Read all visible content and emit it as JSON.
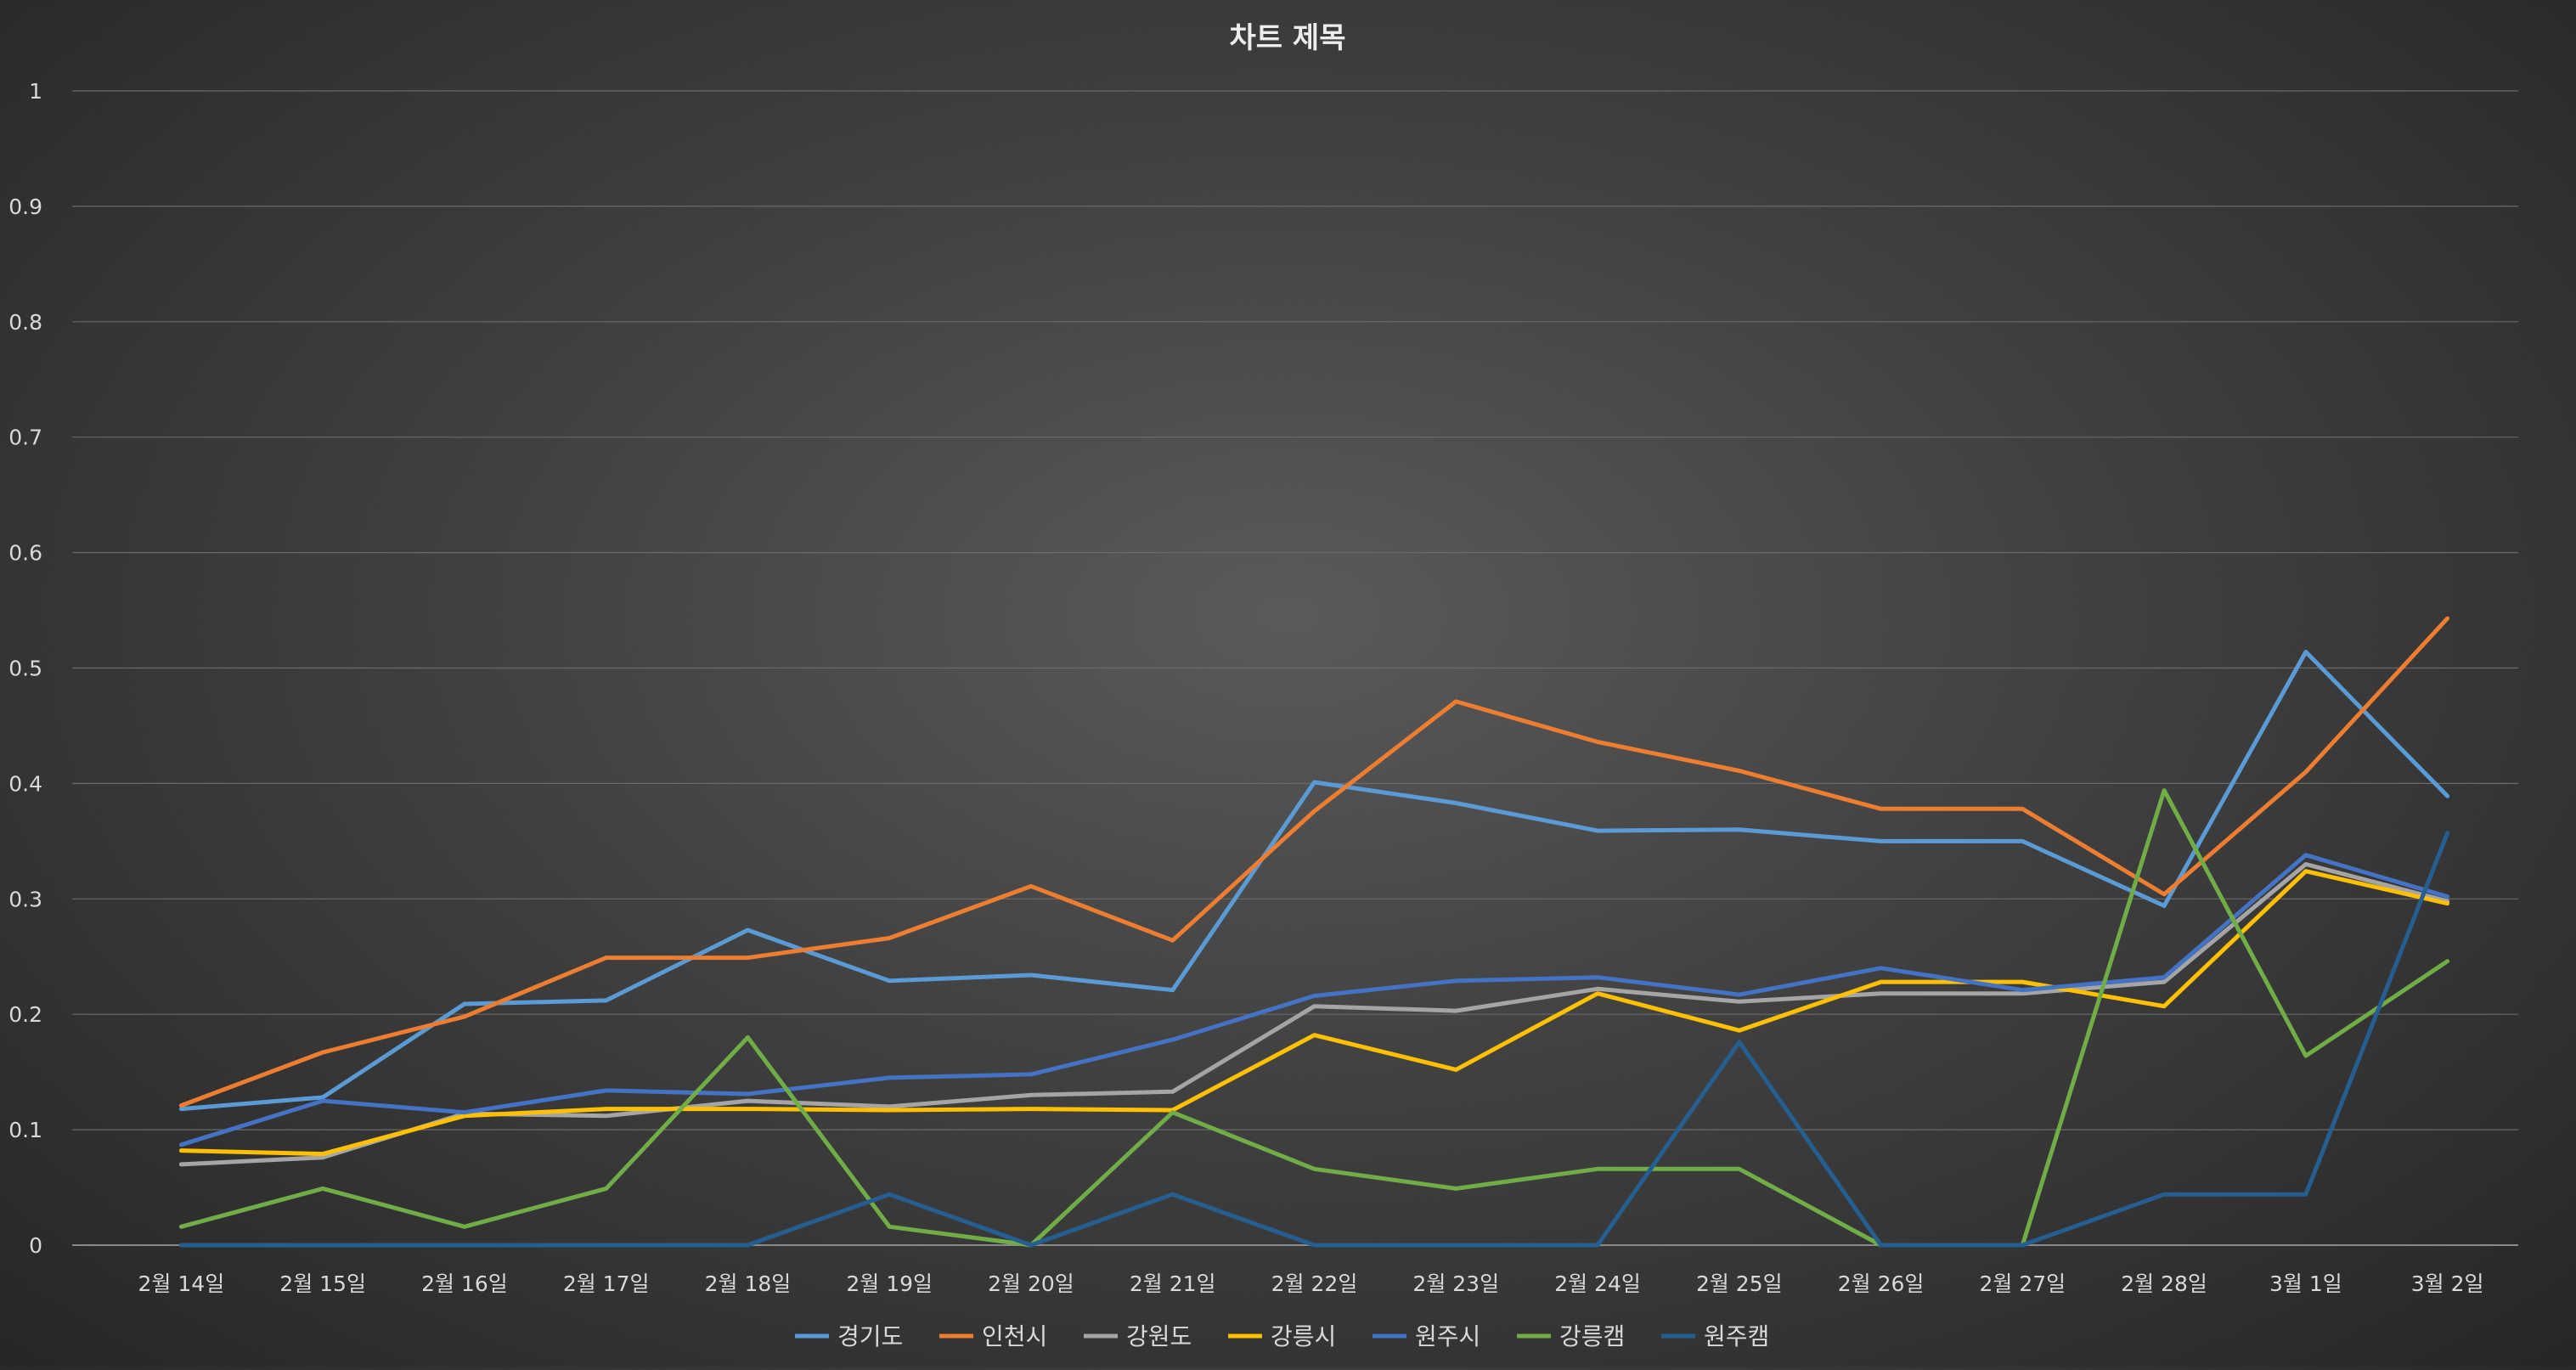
{
  "chart_data": {
    "type": "line",
    "title": "차트 제목",
    "xlabel": "",
    "ylabel": "",
    "ylim": [
      0,
      1
    ],
    "yticks": [
      "0",
      "0.1",
      "0.2",
      "0.3",
      "0.4",
      "0.5",
      "0.6",
      "0.7",
      "0.8",
      "0.9",
      "1"
    ],
    "categories": [
      "2월 14일",
      "2월 15일",
      "2월 16일",
      "2월 17일",
      "2월 18일",
      "2월 19일",
      "2월 20일",
      "2월 21일",
      "2월 22일",
      "2월 23일",
      "2월 24일",
      "2월 25일",
      "2월 26일",
      "2월 27일",
      "2월 28일",
      "3월 1일",
      "3월 2일"
    ],
    "grid": true,
    "legend_position": "bottom",
    "series": [
      {
        "name": "경기도",
        "color": "#5b9bd5",
        "values": [
          0.118,
          0.128,
          0.209,
          0.212,
          0.273,
          0.229,
          0.234,
          0.221,
          0.401,
          0.383,
          0.359,
          0.36,
          0.35,
          0.35,
          0.294,
          0.514,
          0.389
        ]
      },
      {
        "name": "인천시",
        "color": "#ed7d31",
        "values": [
          0.121,
          0.167,
          0.198,
          0.249,
          0.249,
          0.266,
          0.311,
          0.264,
          0.376,
          0.471,
          0.436,
          0.411,
          0.378,
          0.378,
          0.304,
          0.41,
          0.543
        ]
      },
      {
        "name": "강원도",
        "color": "#a5a5a5",
        "values": [
          0.07,
          0.076,
          0.114,
          0.112,
          0.125,
          0.12,
          0.13,
          0.133,
          0.207,
          0.203,
          0.222,
          0.211,
          0.218,
          0.218,
          0.228,
          0.33,
          0.298
        ]
      },
      {
        "name": "강릉시",
        "color": "#ffc000",
        "values": [
          0.082,
          0.079,
          0.112,
          0.118,
          0.118,
          0.117,
          0.118,
          0.117,
          0.182,
          0.152,
          0.218,
          0.186,
          0.228,
          0.228,
          0.207,
          0.324,
          0.296
        ]
      },
      {
        "name": "원주시",
        "color": "#4472c4",
        "values": [
          0.087,
          0.125,
          0.115,
          0.134,
          0.131,
          0.145,
          0.148,
          0.178,
          0.216,
          0.229,
          0.232,
          0.217,
          0.24,
          0.221,
          0.232,
          0.338,
          0.302
        ]
      },
      {
        "name": "강릉캠",
        "color": "#70ad47",
        "values": [
          0.016,
          0.049,
          0.016,
          0.049,
          0.18,
          0.016,
          0.0,
          0.115,
          0.066,
          0.049,
          0.066,
          0.066,
          0.0,
          0.0,
          0.394,
          0.164,
          0.246
        ]
      },
      {
        "name": "원주캠",
        "color": "#255e91",
        "values": [
          0.0,
          0.0,
          0.0,
          0.0,
          0.0,
          0.044,
          0.0,
          0.044,
          0.0,
          0.0,
          0.0,
          0.176,
          0.0,
          0.0,
          0.044,
          0.044,
          0.357
        ]
      }
    ]
  }
}
